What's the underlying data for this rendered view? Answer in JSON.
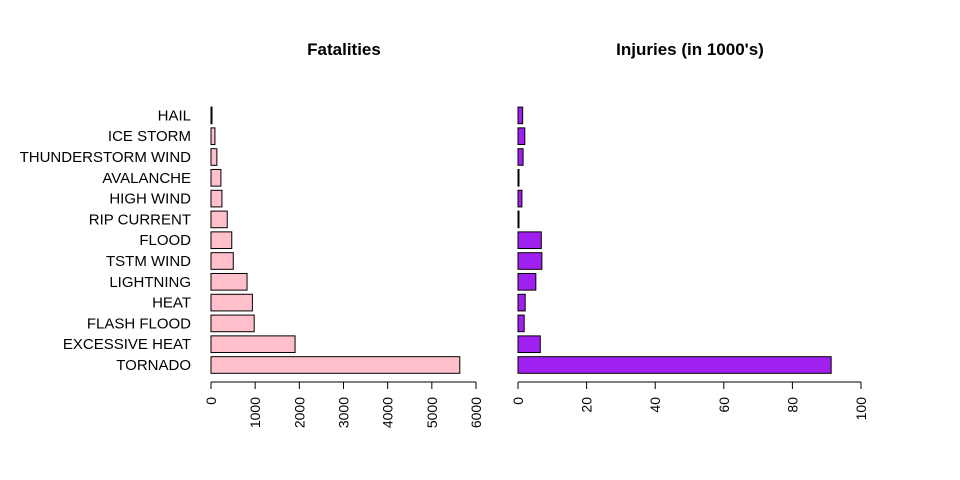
{
  "chart_data": [
    {
      "type": "bar",
      "orientation": "horizontal",
      "title": "Fatalities",
      "categories": [
        "TORNADO",
        "EXCESSIVE HEAT",
        "FLASH FLOOD",
        "HEAT",
        "LIGHTNING",
        "TSTM WIND",
        "FLOOD",
        "RIP CURRENT",
        "HIGH WIND",
        "AVALANCHE",
        "THUNDERSTORM WIND",
        "ICE STORM",
        "HAIL"
      ],
      "values": [
        5633,
        1903,
        978,
        937,
        816,
        504,
        470,
        368,
        248,
        224,
        133,
        89,
        15
      ],
      "xlim": [
        0,
        6000
      ],
      "ticks": [
        0,
        1000,
        2000,
        3000,
        4000,
        5000,
        6000
      ],
      "tick_labels": [
        "0",
        "1000",
        "2000",
        "3000",
        "4000",
        "5000",
        "6000"
      ],
      "color": "#FFC0CB",
      "show_category_labels": true
    },
    {
      "type": "bar",
      "orientation": "horizontal",
      "title": "Injuries (in 1000's)",
      "categories": [
        "TORNADO",
        "EXCESSIVE HEAT",
        "FLASH FLOOD",
        "HEAT",
        "LIGHTNING",
        "TSTM WIND",
        "FLOOD",
        "RIP CURRENT",
        "HIGH WIND",
        "AVALANCHE",
        "THUNDERSTORM WIND",
        "ICE STORM",
        "HAIL"
      ],
      "values": [
        91.3,
        6.5,
        1.8,
        2.1,
        5.2,
        6.96,
        6.79,
        0.23,
        1.14,
        0.17,
        1.49,
        1.98,
        1.36
      ],
      "xlim": [
        0,
        100
      ],
      "ticks": [
        0,
        20,
        40,
        60,
        80,
        100
      ],
      "tick_labels": [
        "0",
        "20",
        "40",
        "60",
        "80",
        "100"
      ],
      "color": "#A020F0",
      "show_category_labels": false
    }
  ]
}
